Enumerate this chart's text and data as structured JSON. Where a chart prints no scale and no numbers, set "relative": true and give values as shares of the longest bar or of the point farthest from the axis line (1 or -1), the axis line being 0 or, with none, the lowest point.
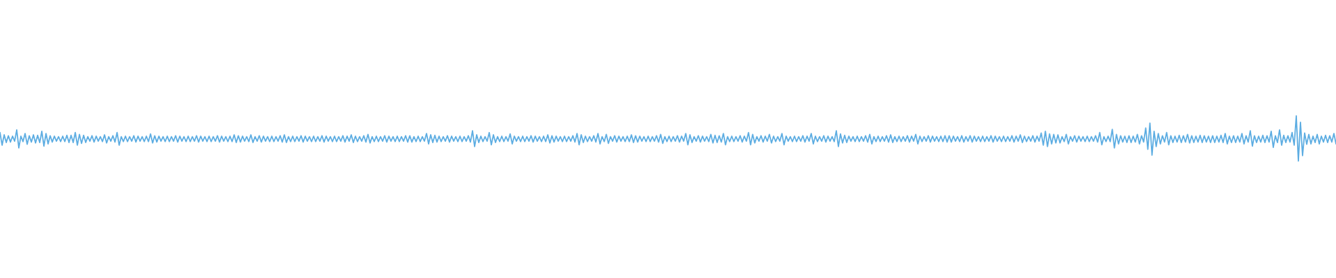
{
  "chart_data": {
    "type": "line",
    "relative": true,
    "color": "#5dade2",
    "categories": [
      null,
      null,
      null,
      null,
      null,
      null,
      null,
      null,
      null,
      null,
      null,
      null,
      null,
      null,
      null,
      null,
      null,
      null,
      null,
      null,
      null,
      null,
      null,
      null,
      null,
      null,
      null,
      null,
      null,
      null,
      null,
      null,
      null,
      null,
      null,
      null,
      null,
      null,
      null,
      null,
      null,
      null,
      null,
      null,
      null,
      null,
      null,
      null,
      null,
      null,
      null,
      null,
      null,
      null,
      null,
      null,
      null,
      null,
      null,
      null,
      null,
      null,
      null,
      null,
      null,
      null,
      null,
      null,
      null,
      null,
      null,
      null,
      null,
      null,
      null,
      null,
      null,
      null,
      null,
      null,
      null,
      null,
      null,
      null,
      null,
      null,
      null,
      null,
      null,
      null,
      null,
      null,
      null,
      null,
      null,
      null,
      null,
      null,
      null,
      null,
      null,
      null,
      null,
      null,
      null,
      null,
      null,
      null,
      null,
      null,
      null,
      null,
      null,
      null,
      null,
      null,
      null,
      null,
      null,
      null,
      null,
      null,
      null,
      null,
      null,
      null,
      null,
      null,
      null,
      null,
      null,
      null,
      null,
      null,
      null,
      null,
      null,
      null,
      null,
      null,
      null,
      null,
      null,
      null,
      null,
      null,
      null,
      null,
      null,
      null,
      null,
      null,
      null,
      null,
      null,
      null,
      null,
      null,
      null,
      null,
      null,
      null,
      null,
      null,
      null,
      null,
      null,
      null,
      null,
      null,
      null,
      null,
      null,
      null,
      null,
      null,
      null,
      null,
      null,
      null,
      null,
      null,
      null,
      null,
      null,
      null,
      null,
      null,
      null,
      null,
      null,
      null,
      null,
      null,
      null,
      null,
      null,
      null,
      null,
      null,
      null,
      null,
      null,
      null,
      null,
      null,
      null,
      null,
      null,
      null,
      null,
      null,
      null,
      null,
      null,
      null,
      null,
      null,
      null,
      null,
      null,
      null,
      null,
      null,
      null,
      null,
      null,
      null,
      null,
      null,
      null,
      null,
      null,
      null,
      null,
      null,
      null,
      null,
      null,
      null,
      null,
      null,
      null,
      null,
      null,
      null,
      null,
      null,
      null,
      null,
      null,
      null,
      null,
      null,
      null,
      null,
      null,
      null,
      null,
      null,
      null,
      null,
      null,
      null,
      null,
      null,
      null,
      null,
      null,
      null,
      null,
      null,
      null,
      null,
      null,
      null,
      null,
      null,
      null,
      null,
      null,
      null,
      null,
      null,
      null,
      null,
      null,
      null,
      null,
      null,
      null,
      null,
      null,
      null,
      null,
      null,
      null,
      null,
      null,
      null,
      null,
      null,
      null,
      null,
      null,
      null,
      null,
      null,
      null,
      null,
      null,
      null,
      null,
      null,
      null,
      null,
      null,
      null,
      null,
      null,
      null,
      null,
      null,
      null,
      null,
      null,
      null,
      null,
      null,
      null,
      null,
      null,
      null,
      null,
      null,
      null,
      null,
      null,
      null,
      null,
      null,
      null,
      null,
      null,
      null,
      null,
      null,
      null,
      null,
      null,
      null,
      null,
      null,
      null,
      null,
      null,
      null,
      null,
      null,
      null,
      null,
      null,
      null,
      null,
      null,
      null,
      null,
      null,
      null,
      null,
      null,
      null,
      null,
      null,
      null,
      null,
      null,
      null,
      null,
      null,
      null,
      null,
      null,
      null,
      null,
      null,
      null,
      null,
      null,
      null,
      null,
      null,
      null,
      null,
      null,
      null,
      null,
      null,
      null,
      null,
      null,
      null,
      null,
      null,
      null,
      null,
      null,
      null,
      null,
      null,
      null,
      null,
      null,
      null,
      null,
      null,
      null,
      null,
      null,
      null,
      null,
      null,
      null,
      null,
      null,
      null,
      null,
      null,
      null,
      null,
      null,
      null,
      null,
      null,
      null,
      null,
      null,
      null,
      null,
      null,
      null,
      null,
      null,
      null,
      null,
      null,
      null,
      null,
      null,
      null,
      null,
      null,
      null,
      null,
      null,
      null,
      null,
      null,
      null,
      null,
      null,
      null,
      null,
      null,
      null,
      null,
      null,
      null,
      null,
      null,
      null,
      null,
      null,
      null,
      null,
      null,
      null,
      null,
      null,
      null,
      null,
      null,
      null,
      null,
      null,
      null,
      null,
      null,
      null,
      null,
      null,
      null,
      null,
      null,
      null,
      null,
      null,
      null,
      null,
      null,
      null,
      null,
      null,
      null,
      null,
      null,
      null,
      null,
      null,
      null,
      null,
      null,
      null,
      null,
      null,
      null,
      null,
      null,
      null,
      null,
      null,
      null,
      null,
      null,
      null,
      null,
      null,
      null,
      null,
      null,
      null,
      null,
      null,
      null,
      null,
      null,
      null,
      null,
      null,
      null,
      null,
      null,
      null,
      null,
      null,
      null,
      null,
      null,
      null,
      null,
      null,
      null,
      null,
      null,
      null,
      null,
      null,
      null,
      null,
      null,
      null,
      null,
      null,
      null,
      null,
      null,
      null,
      null,
      null,
      null,
      null,
      null,
      null,
      null,
      null,
      null,
      null,
      null,
      null,
      null,
      null,
      null,
      null,
      null,
      null,
      null,
      null,
      null,
      null,
      null,
      null,
      null,
      null,
      null,
      null,
      null,
      null,
      null,
      null,
      null,
      null,
      null,
      null,
      null,
      null,
      null,
      null,
      null,
      null,
      null,
      null,
      null,
      null,
      null,
      null,
      null,
      null,
      null,
      null,
      null,
      null,
      null,
      null,
      null,
      null,
      null,
      null,
      null,
      null,
      null,
      null,
      null,
      null,
      null,
      null,
      null,
      null,
      null,
      null,
      null
    ],
    "values": [
      0.63,
      0.35,
      0.58,
      0.41,
      0.56,
      0.42,
      0.55,
      0.44,
      0.69,
      0.29,
      0.55,
      0.43,
      0.61,
      0.37,
      0.56,
      0.42,
      0.58,
      0.4,
      0.57,
      0.41,
      0.66,
      0.33,
      0.61,
      0.38,
      0.56,
      0.42,
      0.55,
      0.44,
      0.54,
      0.43,
      0.55,
      0.43,
      0.57,
      0.41,
      0.57,
      0.41,
      0.63,
      0.35,
      0.59,
      0.39,
      0.57,
      0.41,
      0.54,
      0.44,
      0.56,
      0.42,
      0.55,
      0.44,
      0.54,
      0.43,
      0.58,
      0.4,
      0.54,
      0.44,
      0.56,
      0.42,
      0.63,
      0.35,
      0.54,
      0.43,
      0.55,
      0.43,
      0.54,
      0.44,
      0.56,
      0.42,
      0.55,
      0.44,
      0.54,
      0.43,
      0.55,
      0.43,
      0.6,
      0.4,
      0.56,
      0.42,
      0.55,
      0.44,
      0.54,
      0.43,
      0.55,
      0.43,
      0.54,
      0.44,
      0.56,
      0.42,
      0.55,
      0.44,
      0.54,
      0.43,
      0.55,
      0.43,
      0.54,
      0.44,
      0.56,
      0.42,
      0.55,
      0.44,
      0.54,
      0.43,
      0.55,
      0.43,
      0.54,
      0.44,
      0.56,
      0.42,
      0.55,
      0.44,
      0.54,
      0.43,
      0.55,
      0.43,
      0.58,
      0.41,
      0.56,
      0.42,
      0.55,
      0.44,
      0.54,
      0.43,
      0.58,
      0.41,
      0.54,
      0.44,
      0.56,
      0.42,
      0.55,
      0.44,
      0.54,
      0.43,
      0.55,
      0.43,
      0.54,
      0.44,
      0.56,
      0.42,
      0.58,
      0.41,
      0.54,
      0.43,
      0.55,
      0.43,
      0.54,
      0.44,
      0.56,
      0.42,
      0.55,
      0.44,
      0.54,
      0.43,
      0.55,
      0.43,
      0.54,
      0.44,
      0.56,
      0.42,
      0.55,
      0.44,
      0.54,
      0.43,
      0.55,
      0.43,
      0.54,
      0.44,
      0.56,
      0.42,
      0.55,
      0.44,
      0.58,
      0.41,
      0.55,
      0.43,
      0.54,
      0.44,
      0.56,
      0.42,
      0.59,
      0.4,
      0.54,
      0.43,
      0.55,
      0.43,
      0.54,
      0.44,
      0.56,
      0.42,
      0.55,
      0.44,
      0.54,
      0.43,
      0.55,
      0.43,
      0.54,
      0.44,
      0.56,
      0.42,
      0.56,
      0.42,
      0.54,
      0.43,
      0.55,
      0.43,
      0.54,
      0.44,
      0.61,
      0.38,
      0.58,
      0.41,
      0.57,
      0.42,
      0.55,
      0.43,
      0.54,
      0.44,
      0.56,
      0.42,
      0.55,
      0.44,
      0.54,
      0.43,
      0.55,
      0.43,
      0.54,
      0.44,
      0.56,
      0.42,
      0.67,
      0.32,
      0.58,
      0.41,
      0.55,
      0.43,
      0.54,
      0.44,
      0.63,
      0.36,
      0.58,
      0.41,
      0.54,
      0.43,
      0.55,
      0.43,
      0.54,
      0.44,
      0.6,
      0.38,
      0.55,
      0.44,
      0.54,
      0.43,
      0.55,
      0.43,
      0.54,
      0.44,
      0.56,
      0.42,
      0.55,
      0.44,
      0.54,
      0.43,
      0.55,
      0.43,
      0.58,
      0.4,
      0.56,
      0.42,
      0.55,
      0.44,
      0.54,
      0.43,
      0.55,
      0.43,
      0.54,
      0.44,
      0.56,
      0.42,
      0.61,
      0.36,
      0.58,
      0.41,
      0.55,
      0.43,
      0.54,
      0.44,
      0.56,
      0.42,
      0.61,
      0.38,
      0.54,
      0.43,
      0.59,
      0.39,
      0.54,
      0.44,
      0.56,
      0.42,
      0.55,
      0.44,
      0.54,
      0.43,
      0.55,
      0.43,
      0.58,
      0.41,
      0.56,
      0.42,
      0.55,
      0.44,
      0.54,
      0.43,
      0.55,
      0.43,
      0.54,
      0.44,
      0.56,
      0.42,
      0.59,
      0.39,
      0.54,
      0.43,
      0.55,
      0.43,
      0.54,
      0.44,
      0.56,
      0.42,
      0.55,
      0.44,
      0.61,
      0.36,
      0.58,
      0.41,
      0.54,
      0.44,
      0.56,
      0.42,
      0.55,
      0.44,
      0.54,
      0.43,
      0.59,
      0.4,
      0.57,
      0.41,
      0.56,
      0.42,
      0.61,
      0.36,
      0.54,
      0.43,
      0.55,
      0.43,
      0.54,
      0.44,
      0.56,
      0.42,
      0.55,
      0.44,
      0.63,
      0.36,
      0.59,
      0.4,
      0.54,
      0.44,
      0.56,
      0.42,
      0.55,
      0.44,
      0.59,
      0.4,
      0.55,
      0.43,
      0.54,
      0.44,
      0.61,
      0.36,
      0.55,
      0.44,
      0.54,
      0.43,
      0.55,
      0.43,
      0.54,
      0.44,
      0.56,
      0.42,
      0.55,
      0.44,
      0.61,
      0.38,
      0.55,
      0.43,
      0.54,
      0.44,
      0.56,
      0.42,
      0.55,
      0.44,
      0.54,
      0.43,
      0.67,
      0.32,
      0.6,
      0.4,
      0.57,
      0.41,
      0.55,
      0.44,
      0.54,
      0.43,
      0.55,
      0.43,
      0.54,
      0.44,
      0.56,
      0.42,
      0.59,
      0.38,
      0.54,
      0.43,
      0.55,
      0.43,
      0.54,
      0.44,
      0.56,
      0.42,
      0.58,
      0.41,
      0.54,
      0.43,
      0.55,
      0.43,
      0.54,
      0.44,
      0.56,
      0.42,
      0.55,
      0.44,
      0.59,
      0.38,
      0.55,
      0.43,
      0.54,
      0.44,
      0.56,
      0.42,
      0.55,
      0.44,
      0.54,
      0.43,
      0.55,
      0.43,
      0.56,
      0.42,
      0.56,
      0.42,
      0.55,
      0.44,
      0.54,
      0.43,
      0.56,
      0.42,
      0.54,
      0.44,
      0.56,
      0.42,
      0.55,
      0.44,
      0.54,
      0.43,
      0.55,
      0.43,
      0.54,
      0.44,
      0.56,
      0.42,
      0.55,
      0.44,
      0.54,
      0.43,
      0.55,
      0.43,
      0.54,
      0.44,
      0.56,
      0.42,
      0.55,
      0.44,
      0.58,
      0.41,
      0.55,
      0.43,
      0.54,
      0.44,
      0.56,
      0.42,
      0.55,
      0.44,
      0.62,
      0.35,
      0.66,
      0.32,
      0.6,
      0.38,
      0.59,
      0.4,
      0.58,
      0.4,
      0.54,
      0.43,
      0.59,
      0.38,
      0.54,
      0.44,
      0.56,
      0.42,
      0.55,
      0.44,
      0.54,
      0.43,
      0.55,
      0.43,
      0.54,
      0.44,
      0.56,
      0.42,
      0.63,
      0.36,
      0.54,
      0.43,
      0.55,
      0.43,
      0.7,
      0.29,
      0.59,
      0.38,
      0.56,
      0.42,
      0.55,
      0.41,
      0.56,
      0.41,
      0.55,
      0.42,
      0.59,
      0.38,
      0.56,
      0.42,
      0.73,
      0.26,
      0.84,
      0.13,
      0.66,
      0.32,
      0.61,
      0.38,
      0.56,
      0.42,
      0.63,
      0.36,
      0.56,
      0.41,
      0.55,
      0.42,
      0.57,
      0.41,
      0.56,
      0.42,
      0.59,
      0.4,
      0.56,
      0.41,
      0.55,
      0.42,
      0.57,
      0.41,
      0.56,
      0.42,
      0.55,
      0.41,
      0.56,
      0.41,
      0.55,
      0.42,
      0.57,
      0.41,
      0.61,
      0.38,
      0.55,
      0.41,
      0.56,
      0.41,
      0.55,
      0.42,
      0.61,
      0.38,
      0.56,
      0.42,
      0.67,
      0.33,
      0.56,
      0.41,
      0.55,
      0.42,
      0.57,
      0.41,
      0.56,
      0.42,
      0.66,
      0.3,
      0.56,
      0.41,
      0.69,
      0.35,
      0.57,
      0.41,
      0.56,
      0.42,
      0.63,
      0.35,
      1,
      0,
      0.86,
      0.12,
      0.62,
      0.37,
      0.59,
      0.38,
      0.55,
      0.41,
      0.59,
      0.38,
      0.55,
      0.42,
      0.57,
      0.41,
      0.56,
      0.42,
      0.61,
      0.38
    ]
  }
}
